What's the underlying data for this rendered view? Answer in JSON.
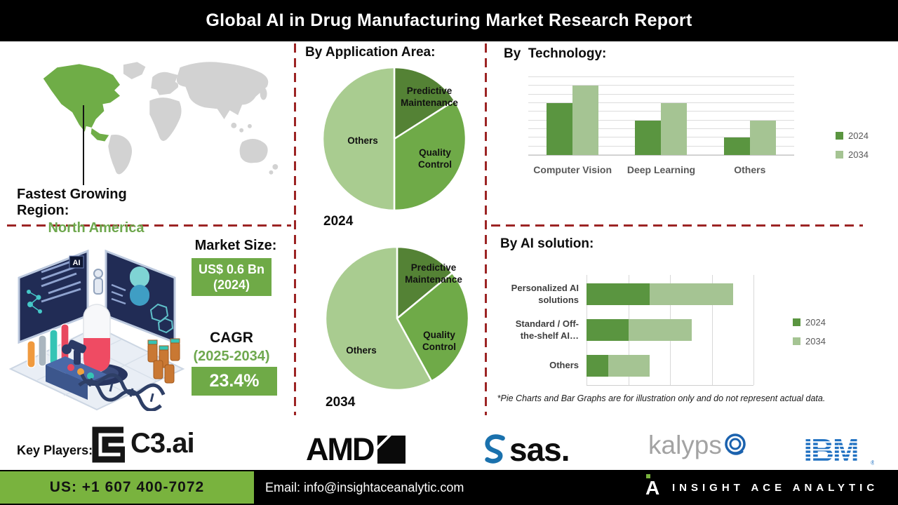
{
  "header": {
    "title": "Global AI in Drug Manufacturing Market Research Report"
  },
  "region": {
    "label": "Fastest Growing Region:",
    "value": "North America"
  },
  "market": {
    "size_label": "Market Size:",
    "size_value": "US$ 0.6 Bn",
    "size_year": "(2024)",
    "cagr_label": "CAGR",
    "cagr_period": "(2025-2034)",
    "cagr_value": "23.4%"
  },
  "illustration": {
    "screen_badge": "AI"
  },
  "chart_data": [
    {
      "type": "pie",
      "title": "By Application Area:",
      "year_label": "2024",
      "labels": [
        "Predictive Maintenance",
        "Quality Control",
        "Others"
      ],
      "values": [
        16,
        34,
        50
      ],
      "colors": [
        "#548235",
        "#6faa48",
        "#a9cc90"
      ]
    },
    {
      "type": "pie",
      "title": "By Application Area:",
      "year_label": "2034",
      "labels": [
        "Predictive Maintenance",
        "Quality Control",
        "Others"
      ],
      "values": [
        14,
        28,
        58
      ],
      "colors": [
        "#548235",
        "#6faa48",
        "#a9cc90"
      ]
    },
    {
      "type": "bar",
      "title": "By  Technology:",
      "categories": [
        "Computer Vision",
        "Deep Learning",
        "Others"
      ],
      "series": [
        {
          "name": "2024",
          "color": "#5a9540",
          "values": [
            6,
            4,
            2
          ]
        },
        {
          "name": "2034",
          "color": "#a5c493",
          "values": [
            8,
            6,
            4
          ]
        }
      ],
      "ylim": [
        0,
        9
      ],
      "gridlines": true,
      "legend_position": "right"
    },
    {
      "type": "stacked-hbar",
      "title": "By AI solution:",
      "categories": [
        "Personalized AI\nsolutions",
        "Standard / Off-\nthe-shelf AI…",
        "Others"
      ],
      "series": [
        {
          "name": "2024",
          "color": "#5a9540",
          "values": [
            38,
            25,
            13
          ]
        },
        {
          "name": "2034",
          "color": "#a5c493",
          "values": [
            50,
            38,
            25
          ]
        }
      ],
      "xlim": [
        0,
        100
      ],
      "gridlines": true,
      "legend_position": "right",
      "footnote": "*Pie Charts and Bar Graphs are for illustration only and do not represent actual data."
    }
  ],
  "key_players": {
    "label": "Key Players:"
  },
  "logos": {
    "c3": "C3.ai",
    "amd": "AMD",
    "sas": "sas",
    "sas_dot": ".",
    "kalypso": "kalyps",
    "kalypso_o": "o",
    "ibm": "IBM",
    "ibm_reg": "®"
  },
  "footer": {
    "phone": "US: +1 607 400-7072",
    "email": "Email: info@insightaceanalytic.com",
    "brand_initial": "A",
    "brand": "INSIGHT ACE ANALYTIC"
  },
  "colors": {
    "pie_dark_green": "#548235",
    "pie_mid_green": "#6faa48",
    "pie_light_green": "#a9cc90",
    "bar_2024": "#5a9540",
    "bar_2034": "#a5c493",
    "dashed_divider_red": "#9c2424",
    "map_highlight_green": "#6fad47",
    "map_land_gray": "#d2d2d2",
    "footer_green": "#79b33e",
    "accent_green_text": "#6fa84e",
    "ibm_blue": "#1f70c1",
    "sas_blue": "#1a71ad",
    "kalypso_blue": "#1b62ae"
  }
}
